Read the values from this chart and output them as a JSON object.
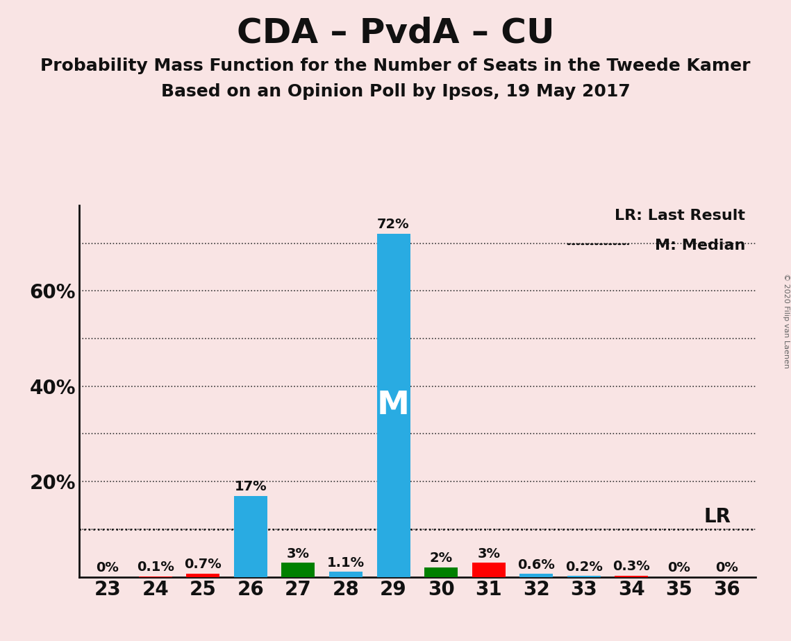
{
  "title": "CDA – PvdA – CU",
  "subtitle1": "Probability Mass Function for the Number of Seats in the Tweede Kamer",
  "subtitle2": "Based on an Opinion Poll by Ipsos, 19 May 2017",
  "copyright": "© 2020 Filip van Laenen",
  "background_color": "#f9e4e4",
  "seats": [
    23,
    24,
    25,
    26,
    27,
    28,
    29,
    30,
    31,
    32,
    33,
    34,
    35,
    36
  ],
  "blue_values": [
    0.0,
    0.0,
    0.0,
    17.0,
    0.0,
    1.1,
    72.0,
    0.0,
    0.0,
    0.6,
    0.2,
    0.0,
    0.0,
    0.0
  ],
  "green_values": [
    0.0,
    0.0,
    0.0,
    0.0,
    3.0,
    0.0,
    0.0,
    2.0,
    0.0,
    0.0,
    0.0,
    0.0,
    0.0,
    0.0
  ],
  "red_values": [
    0.0,
    0.1,
    0.7,
    0.0,
    0.0,
    0.0,
    0.0,
    0.0,
    3.0,
    0.0,
    0.0,
    0.3,
    0.0,
    0.0
  ],
  "bar_labels": [
    "0%",
    "0.1%",
    "0.7%",
    "17%",
    "3%",
    "1.1%",
    "72%",
    "2%",
    "3%",
    "0.6%",
    "0.2%",
    "0.3%",
    "0%",
    "0%"
  ],
  "blue_color": "#29ABE2",
  "green_color": "#008000",
  "red_color": "#FF0000",
  "lr_value": 10.0,
  "median_seat": 29,
  "ylim": [
    0,
    78
  ],
  "yticks": [
    20,
    40,
    60
  ],
  "ytick_labels": [
    "20%",
    "40%",
    "60%"
  ],
  "title_fontsize": 36,
  "subtitle_fontsize": 18,
  "label_fontsize": 14,
  "axis_fontsize": 20,
  "bar_width": 0.7
}
